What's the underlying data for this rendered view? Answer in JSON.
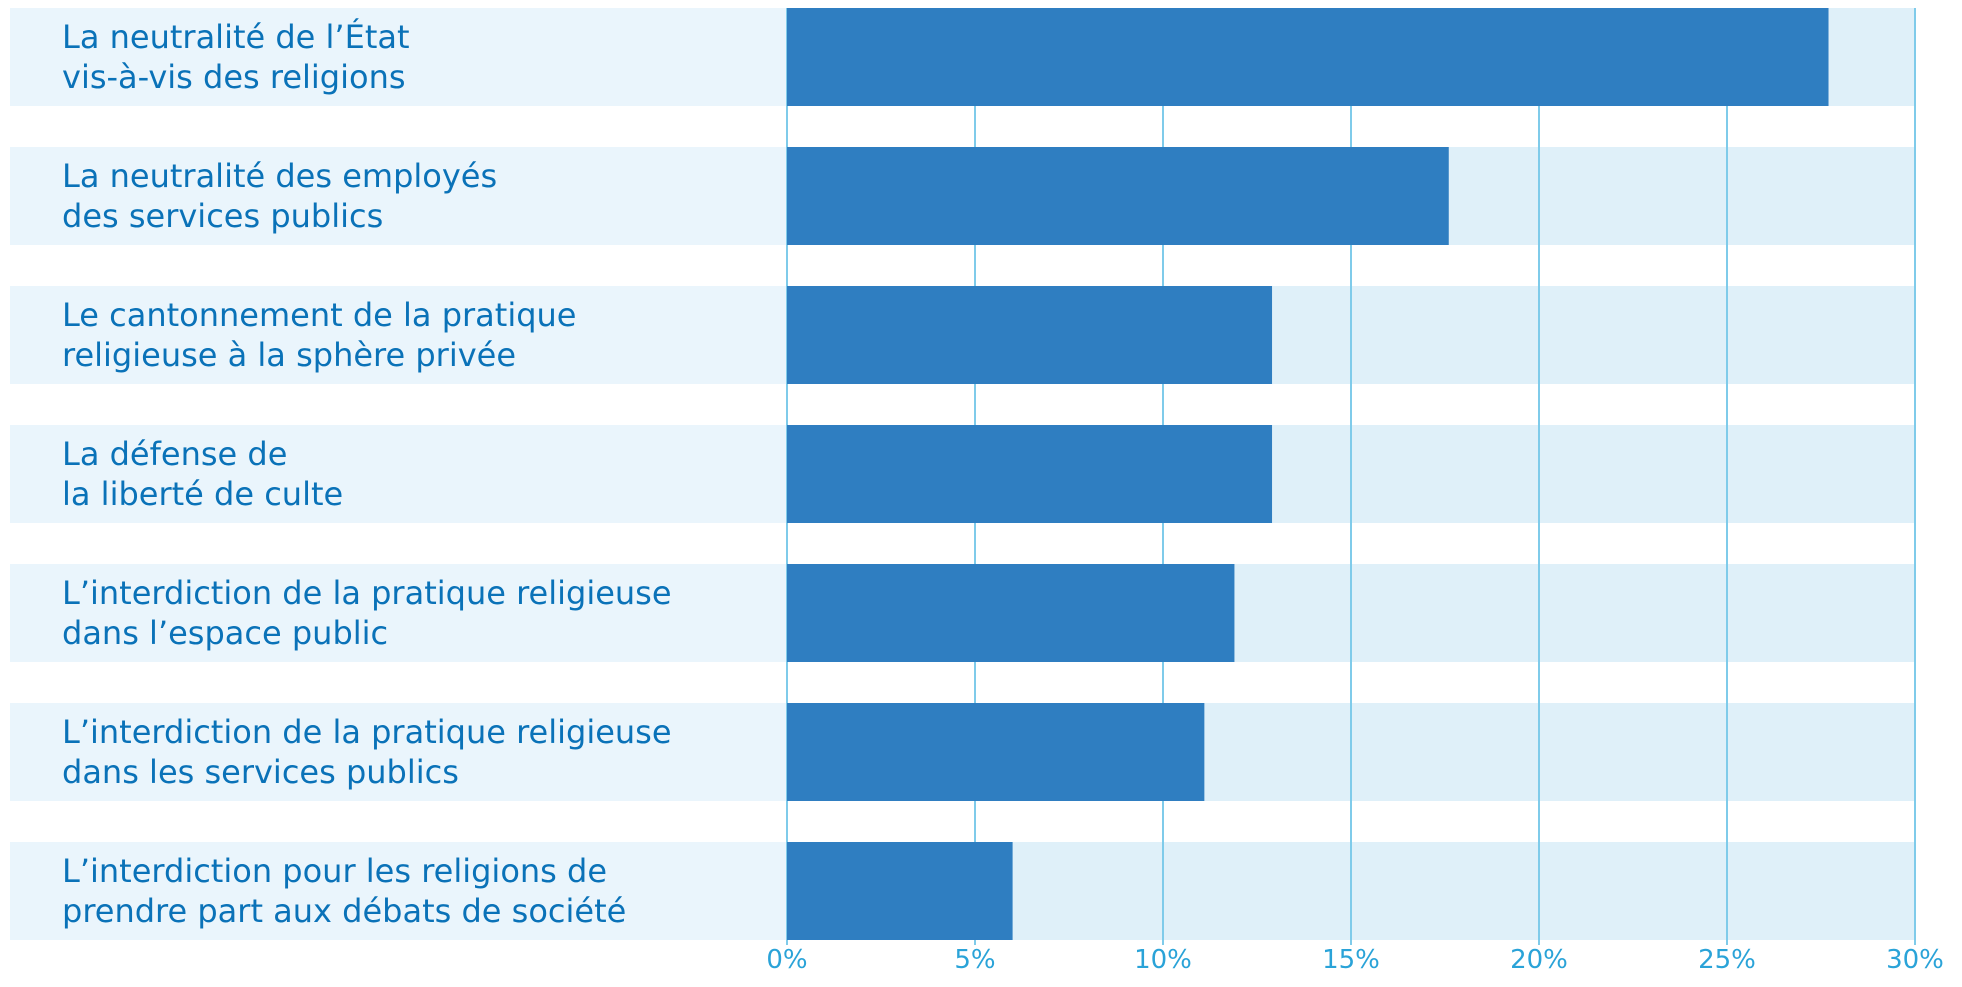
{
  "colors": {
    "bar": "#2f7ec1",
    "label_bg": "#eaf5fc",
    "plot_bg": "#dff0f9",
    "grid": "#7fcbea",
    "label_text": "#0a72b8",
    "tick_text": "#2aa3d8"
  },
  "chart_data": {
    "type": "bar",
    "orientation": "horizontal",
    "categories": [
      "La neutralité de l’État\nvis-à-vis des religions",
      "La neutralité des employés\ndes services publics",
      "Le cantonnement de la pratique\nreligieuse à la sphère privée",
      "La défense de\nla liberté de culte",
      "L’interdiction de la pratique religieuse\ndans l’espace public",
      "L’interdiction de la pratique religieuse\ndans les services publics",
      "L’interdiction pour les religions de\nprendre part aux débats de société"
    ],
    "values": [
      27.7,
      17.6,
      12.9,
      12.9,
      11.9,
      11.1,
      6.0
    ],
    "xlim": [
      0,
      30
    ],
    "x_ticks": [
      0,
      5,
      10,
      15,
      20,
      25,
      30
    ],
    "x_tick_labels": [
      "0%",
      "5%",
      "10%",
      "15%",
      "20%",
      "25%",
      "30%"
    ],
    "grid": true,
    "legend": "none"
  }
}
